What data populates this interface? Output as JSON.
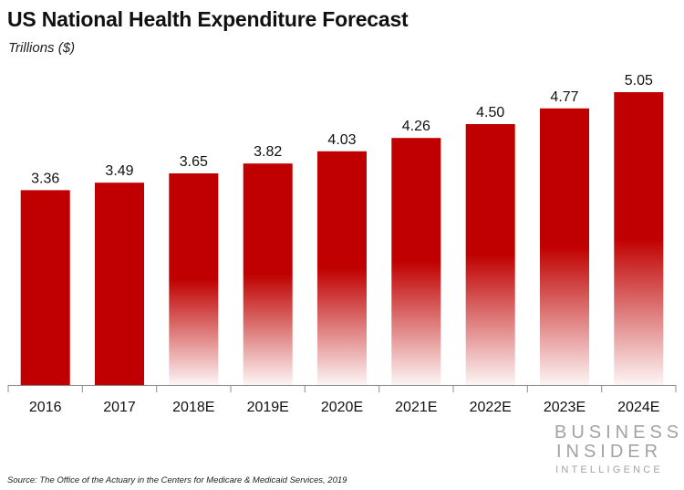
{
  "title": "US National Health Expenditure Forecast",
  "subtitle": "Trillions ($)",
  "source": "Source: The Office of the Actuary in the Centers for Medicare & Medicaid Services, 2019",
  "logo": {
    "line1": "BUSINESS",
    "line2": "INSIDER",
    "line3": "INTELLIGENCE"
  },
  "colors": {
    "bar": "#c00000",
    "axis": "#8c8c8c",
    "logo": "#a3a3a3"
  },
  "chart_data": {
    "type": "bar",
    "categories": [
      "2016",
      "2017",
      "2018E",
      "2019E",
      "2020E",
      "2021E",
      "2022E",
      "2023E",
      "2024E"
    ],
    "values": [
      3.36,
      3.49,
      3.65,
      3.82,
      4.03,
      4.26,
      4.5,
      4.77,
      5.05
    ],
    "value_labels": [
      "3.36",
      "3.49",
      "3.65",
      "3.82",
      "4.03",
      "4.26",
      "4.50",
      "4.77",
      "5.05"
    ],
    "estimated": [
      false,
      false,
      true,
      true,
      true,
      true,
      true,
      true,
      true
    ],
    "title": "US National Health Expenditure Forecast",
    "ylabel": "Trillions ($)",
    "ylim": [
      0,
      5.05
    ],
    "grid": false,
    "legend": "none"
  }
}
